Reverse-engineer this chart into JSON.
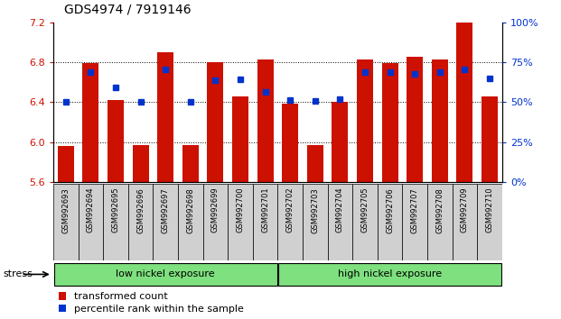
{
  "title": "GDS4974 / 7919146",
  "samples": [
    "GSM992693",
    "GSM992694",
    "GSM992695",
    "GSM992696",
    "GSM992697",
    "GSM992698",
    "GSM992699",
    "GSM992700",
    "GSM992701",
    "GSM992702",
    "GSM992703",
    "GSM992704",
    "GSM992705",
    "GSM992706",
    "GSM992707",
    "GSM992708",
    "GSM992709",
    "GSM992710"
  ],
  "bar_values": [
    5.96,
    6.79,
    6.42,
    5.97,
    6.9,
    5.97,
    6.8,
    6.46,
    6.83,
    6.38,
    5.97,
    6.4,
    6.83,
    6.79,
    6.85,
    6.83,
    7.2,
    6.46
  ],
  "percentile_values": [
    6.4,
    6.7,
    6.55,
    6.4,
    6.73,
    6.4,
    6.62,
    6.63,
    6.5,
    6.42,
    6.41,
    6.43,
    6.7,
    6.7,
    6.68,
    6.7,
    6.73,
    6.64
  ],
  "ymin": 5.6,
  "ymax": 7.2,
  "yticks_left": [
    5.6,
    6.0,
    6.4,
    6.8,
    7.2
  ],
  "yticks_right_pct": [
    0,
    25,
    50,
    75,
    100
  ],
  "bar_color": "#cc1100",
  "marker_color": "#0033cc",
  "group1_label": "low nickel exposure",
  "group1_count": 9,
  "group2_label": "high nickel exposure",
  "group2_count": 9,
  "group_color": "#7EE07E",
  "stress_label": "stress",
  "legend1": "transformed count",
  "legend2": "percentile rank within the sample",
  "left_tick_color": "#cc1100",
  "right_tick_color": "#0033cc",
  "tick_label_bg": "#d0d0d0",
  "title_fontsize": 10
}
